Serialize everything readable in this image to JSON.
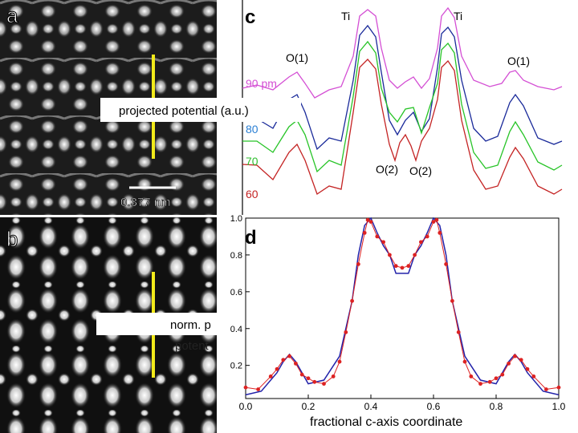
{
  "panels": {
    "a": "a",
    "b": "b",
    "c": "c",
    "d": "d"
  },
  "panel_a": {
    "scalebar_label": "0.377 nm"
  },
  "panel_c": {
    "peak_labels": [
      "Ti",
      "Ti",
      "O(1)",
      "O(1)",
      "O(2)",
      "O(2)"
    ],
    "ylabel": "projected potential  (a.u.)",
    "thickness_labels": [
      {
        "text": "90 pm",
        "color": "#d44fd4"
      },
      {
        "text": "80",
        "color": "#2a7fd4"
      },
      {
        "text": "70",
        "color": "#2fbf2f"
      },
      {
        "text": "60",
        "color": "#c42323"
      }
    ]
  },
  "panel_b": {
    "ylabel_line1": "norm. p",
    "ylabel_line2": "potent"
  },
  "chart_data": {
    "type": "line",
    "xlabel": "fractional c-axis coordinate",
    "xlim": [
      0.0,
      1.0
    ],
    "ylim": [
      0.02,
      1.0
    ],
    "xticks": [
      "0.0",
      "0.2",
      "0.4",
      "0.6",
      "0.8",
      "1.0"
    ],
    "yticks": [
      "0.2",
      "0.4",
      "0.6",
      "0.8",
      "1.0"
    ],
    "series": [
      {
        "color": "#2222aa",
        "style": "line",
        "x": [
          0.0,
          0.05,
          0.1,
          0.12,
          0.14,
          0.16,
          0.2,
          0.25,
          0.3,
          0.34,
          0.36,
          0.38,
          0.4,
          0.42,
          0.44,
          0.46,
          0.48,
          0.5,
          0.52,
          0.54,
          0.56,
          0.58,
          0.6,
          0.62,
          0.64,
          0.66,
          0.7,
          0.75,
          0.8,
          0.84,
          0.86,
          0.88,
          0.9,
          0.95,
          1.0
        ],
        "y": [
          0.04,
          0.06,
          0.16,
          0.22,
          0.26,
          0.22,
          0.1,
          0.12,
          0.25,
          0.55,
          0.8,
          0.96,
          1.0,
          0.92,
          0.85,
          0.8,
          0.7,
          0.7,
          0.7,
          0.8,
          0.85,
          0.92,
          1.0,
          0.96,
          0.8,
          0.55,
          0.25,
          0.12,
          0.1,
          0.22,
          0.26,
          0.22,
          0.16,
          0.06,
          0.04
        ]
      },
      {
        "color": "#dd2222",
        "style": "dots",
        "x": [
          0.0,
          0.04,
          0.08,
          0.1,
          0.12,
          0.14,
          0.16,
          0.18,
          0.2,
          0.22,
          0.25,
          0.28,
          0.3,
          0.32,
          0.34,
          0.36,
          0.38,
          0.39,
          0.4,
          0.42,
          0.44,
          0.46,
          0.48,
          0.5,
          0.52,
          0.54,
          0.56,
          0.58,
          0.6,
          0.61,
          0.62,
          0.64,
          0.66,
          0.68,
          0.7,
          0.72,
          0.75,
          0.78,
          0.8,
          0.82,
          0.84,
          0.86,
          0.88,
          0.9,
          0.92,
          0.96,
          1.0
        ],
        "y": [
          0.08,
          0.07,
          0.14,
          0.18,
          0.23,
          0.25,
          0.21,
          0.15,
          0.13,
          0.11,
          0.1,
          0.14,
          0.22,
          0.38,
          0.55,
          0.75,
          0.92,
          0.99,
          0.98,
          0.9,
          0.87,
          0.8,
          0.74,
          0.73,
          0.74,
          0.8,
          0.87,
          0.9,
          0.98,
          0.99,
          0.92,
          0.75,
          0.55,
          0.38,
          0.22,
          0.14,
          0.1,
          0.11,
          0.13,
          0.15,
          0.21,
          0.25,
          0.23,
          0.18,
          0.14,
          0.07,
          0.08
        ]
      }
    ]
  }
}
